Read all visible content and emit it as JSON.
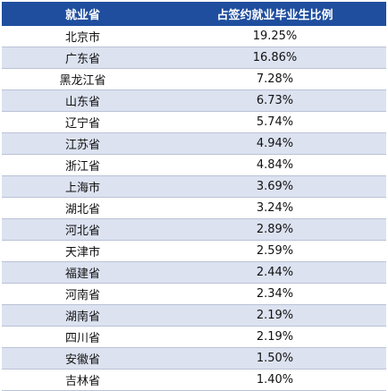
{
  "table": {
    "headers": [
      "就业省",
      "占签约就业毕业生比例"
    ],
    "rows": [
      [
        "北京市",
        "19.25%"
      ],
      [
        "广东省",
        "16.86%"
      ],
      [
        "黑龙江省",
        "7.28%"
      ],
      [
        "山东省",
        "6.73%"
      ],
      [
        "辽宁省",
        "5.74%"
      ],
      [
        "江苏省",
        "4.94%"
      ],
      [
        "浙江省",
        "4.84%"
      ],
      [
        "上海市",
        "3.69%"
      ],
      [
        "湖北省",
        "3.24%"
      ],
      [
        "河北省",
        "2.89%"
      ],
      [
        "天津市",
        "2.59%"
      ],
      [
        "福建省",
        "2.44%"
      ],
      [
        "河南省",
        "2.34%"
      ],
      [
        "湖南省",
        "2.19%"
      ],
      [
        "四川省",
        "2.19%"
      ],
      [
        "安徽省",
        "1.50%"
      ],
      [
        "吉林省",
        "1.40%"
      ]
    ]
  },
  "colors": {
    "header_bg": "#1f4e9e",
    "stripe_bg": "#dce2f0"
  }
}
